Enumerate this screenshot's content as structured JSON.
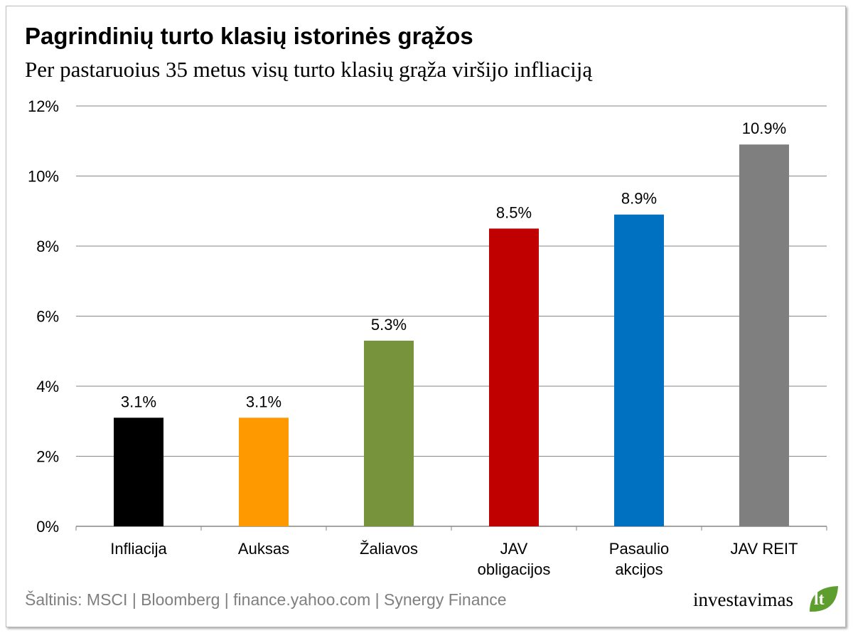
{
  "title": "Pagrindinių turto klasių istorinės grąžos",
  "subtitle": "Per pastaruoius 35 metus visų turto klasių grąža viršijo infliaciją",
  "source": "Šaltinis: MSCI | Bloomberg | finance.yahoo.com | Synergy Finance",
  "logo": {
    "text": "investavimas",
    "tld": "lt"
  },
  "colors": {
    "leaf": "#5e9e2e",
    "grid": "#868686",
    "axis": "#868686"
  },
  "chart_data": {
    "type": "bar",
    "categories": [
      [
        "Infliacija"
      ],
      [
        "Auksas"
      ],
      [
        "Žaliavos"
      ],
      [
        "JAV",
        "obligacijos"
      ],
      [
        "Pasaulio",
        "akcijos"
      ],
      [
        "JAV REIT"
      ]
    ],
    "values": [
      3.1,
      3.1,
      5.3,
      8.5,
      8.9,
      10.9
    ],
    "labels": [
      "3.1%",
      "3.1%",
      "5.3%",
      "8.5%",
      "8.9%",
      "10.9%"
    ],
    "colors": [
      "#000000",
      "#ff9900",
      "#77933c",
      "#c00000",
      "#0070c0",
      "#7f7f7f"
    ],
    "ylim": [
      0,
      12
    ],
    "yticks": [
      "0%",
      "2%",
      "4%",
      "6%",
      "8%",
      "10%",
      "12%"
    ],
    "grid": true,
    "legend": "none"
  }
}
